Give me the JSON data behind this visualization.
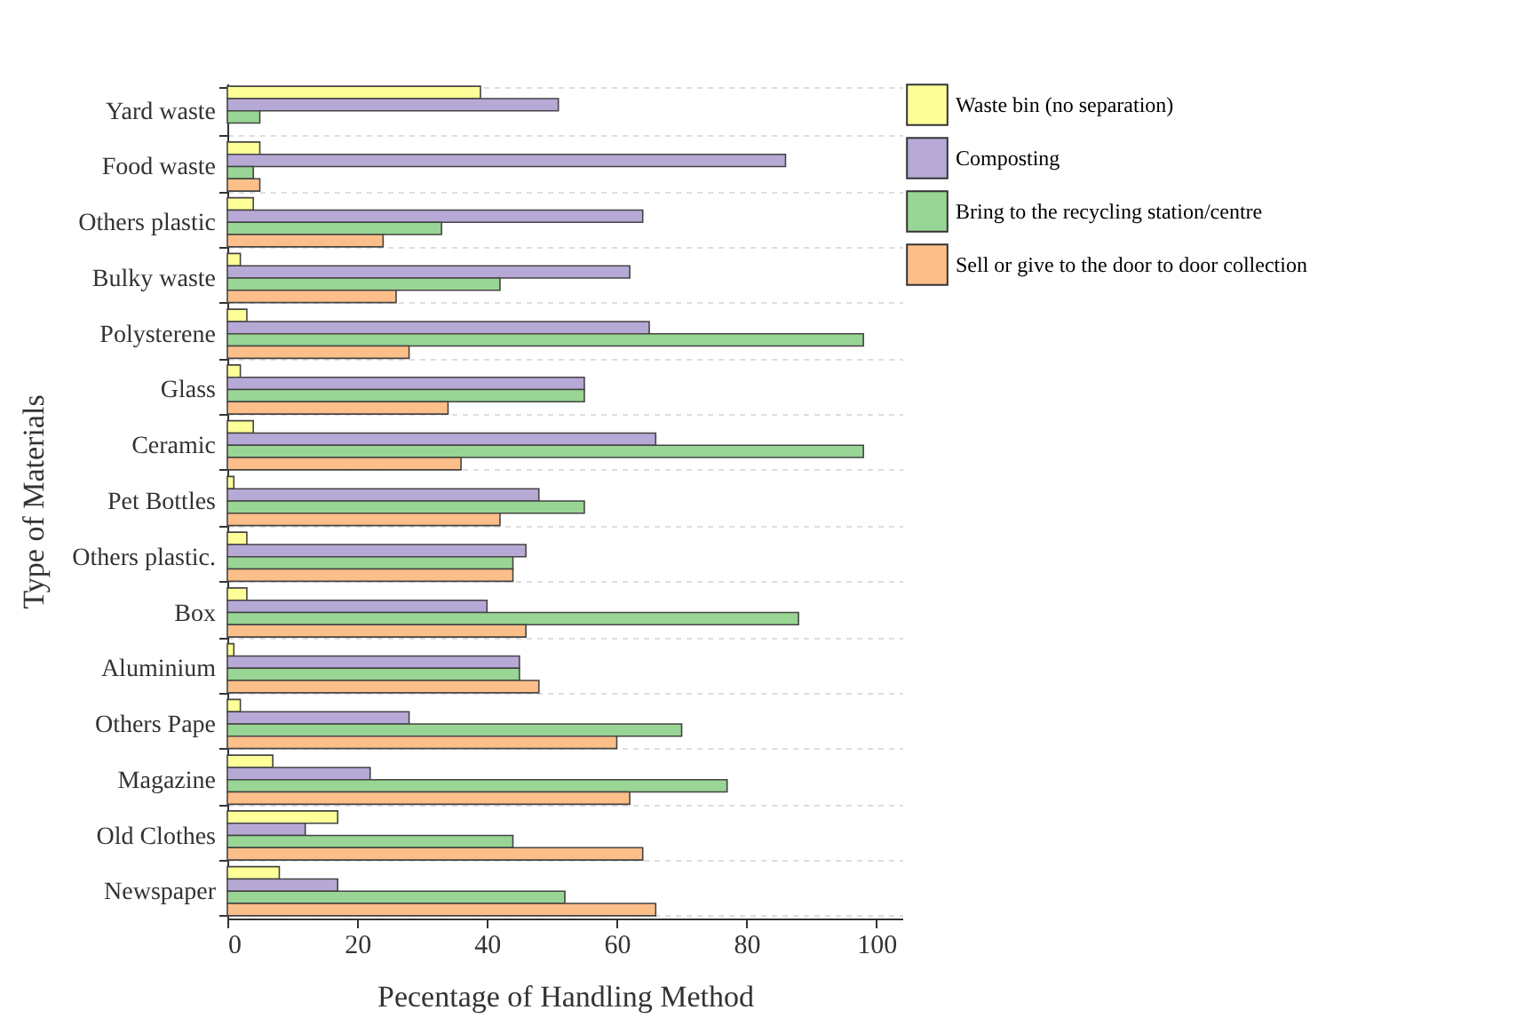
{
  "chart_data": {
    "type": "bar",
    "orientation": "horizontal",
    "xlabel": "Pecentage of Handling Method",
    "ylabel": "Type of Materials",
    "categories": [
      "Yard waste",
      "Food waste",
      "Others plastic",
      "Bulky waste",
      "Polysterene",
      "Glass",
      "Ceramic",
      "Pet Bottles",
      "Others plastic.",
      "Box",
      "Aluminium",
      "Others Pape",
      "Magazine",
      "Old Clothes",
      "Newspaper"
    ],
    "series": [
      {
        "name": "Waste bin (no separation)",
        "color": "#ffff99",
        "values": [
          39,
          5,
          4,
          2,
          3,
          2,
          4,
          1,
          3,
          3,
          1,
          2,
          7,
          17,
          8
        ]
      },
      {
        "name": "Composting",
        "color": "#b7a9d6",
        "values": [
          51,
          86,
          64,
          62,
          65,
          55,
          66,
          48,
          46,
          40,
          45,
          28,
          22,
          12,
          17
        ]
      },
      {
        "name": "Bring to the recycling station/centre",
        "color": "#99d594",
        "values": [
          5,
          4,
          33,
          42,
          98,
          55,
          98,
          55,
          44,
          88,
          45,
          70,
          77,
          44,
          52
        ]
      },
      {
        "name": "Sell or give to the door to door collection",
        "color": "#fdbf8a",
        "values": [
          null,
          5,
          24,
          26,
          28,
          34,
          36,
          42,
          44,
          46,
          48,
          60,
          62,
          64,
          66
        ]
      }
    ],
    "xlim": [
      0,
      104
    ],
    "xticks": [
      0,
      20,
      40,
      60,
      80,
      100
    ],
    "grid": "y",
    "legend": "top right"
  }
}
